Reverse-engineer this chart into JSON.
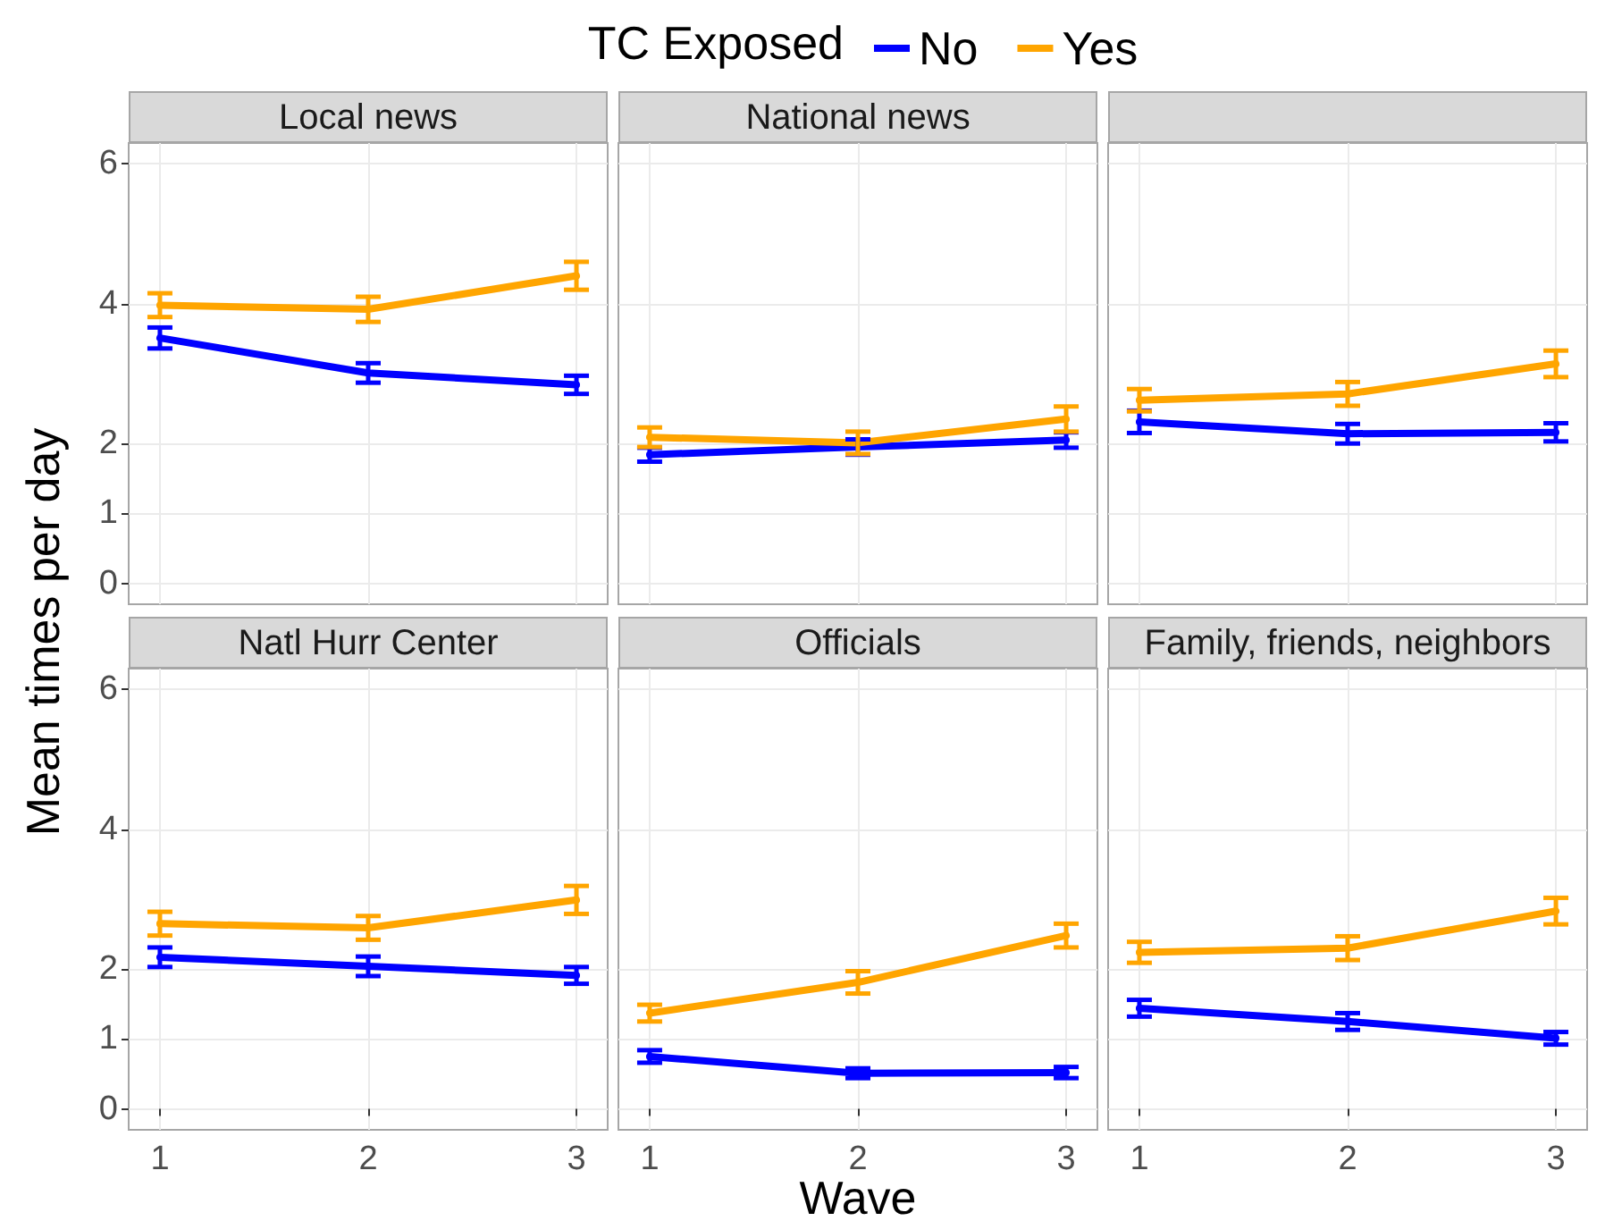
{
  "chart_data": [
    {
      "type": "line",
      "title": "Local news",
      "ylabel": "Mean times per day",
      "x": [
        1,
        2,
        3
      ],
      "series": [
        {
          "color": "#0000ff",
          "values": [
            3.51,
            3.01,
            2.84
          ],
          "errors": [
            0.15,
            0.14,
            0.13
          ]
        },
        {
          "color": "#ffa500",
          "values": [
            3.98,
            3.92,
            4.4
          ],
          "errors": [
            0.17,
            0.18,
            0.2
          ]
        }
      ],
      "xlim": [
        0.85,
        3.15
      ],
      "xticks": [
        1,
        2,
        3
      ],
      "ylim": [
        -0.3,
        6.3
      ],
      "yticks": [
        0,
        1,
        2,
        4,
        6
      ],
      "grid": true,
      "tick_labels": "y"
    },
    {
      "type": "line",
      "title": "National news",
      "legend_title": "TC Exposed",
      "legend": "top",
      "x": [
        1,
        2,
        3
      ],
      "series": [
        {
          "name": "No",
          "color": "#0000ff",
          "values": [
            1.84,
            1.95,
            2.05
          ],
          "errors": [
            0.1,
            0.11,
            0.11
          ]
        },
        {
          "name": "Yes",
          "color": "#ffa500",
          "values": [
            2.09,
            2.01,
            2.35
          ],
          "errors": [
            0.14,
            0.16,
            0.18
          ]
        }
      ],
      "xlim": [
        0.85,
        3.15
      ],
      "xticks": [
        1,
        2,
        3
      ],
      "ylim": [
        -0.3,
        6.3
      ],
      "yticks": [
        0,
        1,
        2,
        4,
        6
      ],
      "grid": true,
      "tick_labels": false
    },
    {
      "type": "line",
      "x": [
        1,
        2,
        3
      ],
      "series": [
        {
          "color": "#0000ff",
          "values": [
            2.31,
            2.14,
            2.16
          ],
          "errors": [
            0.16,
            0.14,
            0.13
          ]
        },
        {
          "color": "#ffa500",
          "values": [
            2.62,
            2.71,
            3.14
          ],
          "errors": [
            0.16,
            0.17,
            0.19
          ]
        }
      ],
      "xlim": [
        0.85,
        3.15
      ],
      "xticks": [
        1,
        2,
        3
      ],
      "ylim": [
        -0.3,
        6.3
      ],
      "yticks": [
        0,
        1,
        2,
        4,
        6
      ],
      "grid": true,
      "tick_labels": false
    },
    {
      "type": "line",
      "title": "Natl Hurr Center",
      "x": [
        1,
        2,
        3
      ],
      "series": [
        {
          "color": "#0000ff",
          "values": [
            2.17,
            2.04,
            1.91
          ],
          "errors": [
            0.14,
            0.14,
            0.12
          ]
        },
        {
          "color": "#ffa500",
          "values": [
            2.65,
            2.59,
            2.99
          ],
          "errors": [
            0.17,
            0.17,
            0.2
          ]
        }
      ],
      "xlim": [
        0.85,
        3.15
      ],
      "xticks": [
        1,
        2,
        3
      ],
      "ylim": [
        -0.3,
        6.3
      ],
      "yticks": [
        0,
        1,
        2,
        4,
        6
      ],
      "grid": true
    },
    {
      "type": "line",
      "title": "Officials",
      "xlabel": "Wave",
      "x": [
        1,
        2,
        3
      ],
      "series": [
        {
          "color": "#0000ff",
          "values": [
            0.75,
            0.51,
            0.52
          ],
          "errors": [
            0.09,
            0.07,
            0.08
          ]
        },
        {
          "color": "#ffa500",
          "values": [
            1.37,
            1.81,
            2.48
          ],
          "errors": [
            0.12,
            0.16,
            0.17
          ]
        }
      ],
      "xlim": [
        0.85,
        3.15
      ],
      "xticks": [
        1,
        2,
        3
      ],
      "ylim": [
        -0.3,
        6.3
      ],
      "yticks": [
        0,
        1,
        2,
        4,
        6
      ],
      "grid": true,
      "tick_labels": "x"
    },
    {
      "type": "line",
      "title": "Family, friends, neighbors",
      "x": [
        1,
        2,
        3
      ],
      "series": [
        {
          "color": "#0000ff",
          "values": [
            1.44,
            1.25,
            1.01
          ],
          "errors": [
            0.12,
            0.12,
            0.09
          ]
        },
        {
          "color": "#ffa500",
          "values": [
            2.24,
            2.3,
            2.83
          ],
          "errors": [
            0.15,
            0.17,
            0.19
          ]
        }
      ],
      "xlim": [
        0.85,
        3.15
      ],
      "xticks": [
        1,
        2,
        3
      ],
      "ylim": [
        -0.3,
        6.3
      ],
      "yticks": [
        0,
        1,
        2,
        4,
        6
      ],
      "grid": true,
      "tick_labels": "x"
    }
  ]
}
